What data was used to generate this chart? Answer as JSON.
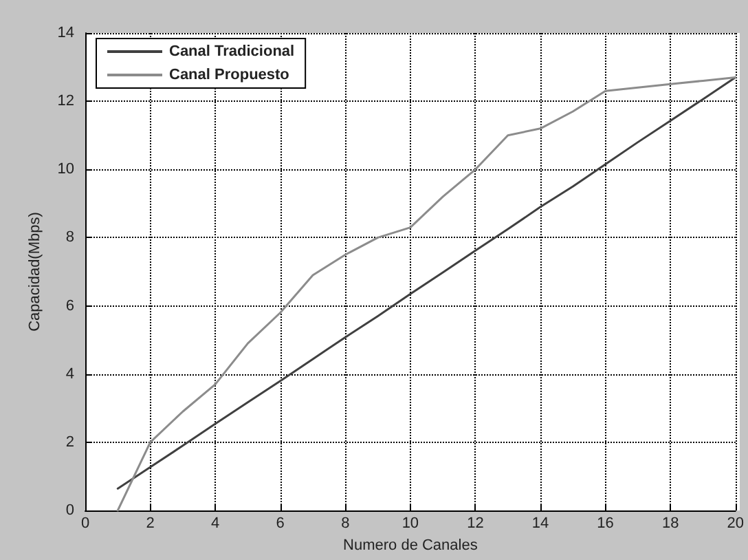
{
  "chart_data": {
    "type": "line",
    "xlabel": "Numero de Canales",
    "ylabel": "Capacidad(Mbps)",
    "x": [
      1,
      2,
      3,
      4,
      5,
      6,
      7,
      8,
      9,
      10,
      11,
      12,
      13,
      14,
      15,
      16,
      17,
      18,
      19,
      20
    ],
    "series": [
      {
        "name": "Canal Tradicional",
        "color": "#404040",
        "values": [
          0.64,
          1.27,
          1.9,
          2.54,
          3.17,
          3.8,
          4.44,
          5.08,
          5.7,
          6.35,
          6.98,
          7.62,
          8.25,
          8.9,
          9.5,
          10.15,
          10.8,
          11.43,
          12.06,
          12.7
        ]
      },
      {
        "name": "Canal Propuesto",
        "color": "#8c8c8c",
        "values": [
          0,
          2.0,
          2.9,
          3.7,
          4.9,
          5.8,
          6.9,
          7.5,
          8.0,
          8.3,
          9.2,
          10.0,
          11.0,
          11.2,
          11.7,
          12.3,
          12.4,
          12.5,
          12.6,
          12.7
        ]
      }
    ],
    "xlim": [
      0,
      20
    ],
    "xticks": [
      0,
      2,
      4,
      6,
      8,
      10,
      12,
      14,
      16,
      18,
      20
    ],
    "ylim": [
      0,
      14
    ],
    "yticks": [
      0,
      2,
      4,
      6,
      8,
      10,
      12,
      14
    ],
    "grid": true,
    "legend": "top left",
    "marker": "none",
    "line_style": "solid"
  }
}
